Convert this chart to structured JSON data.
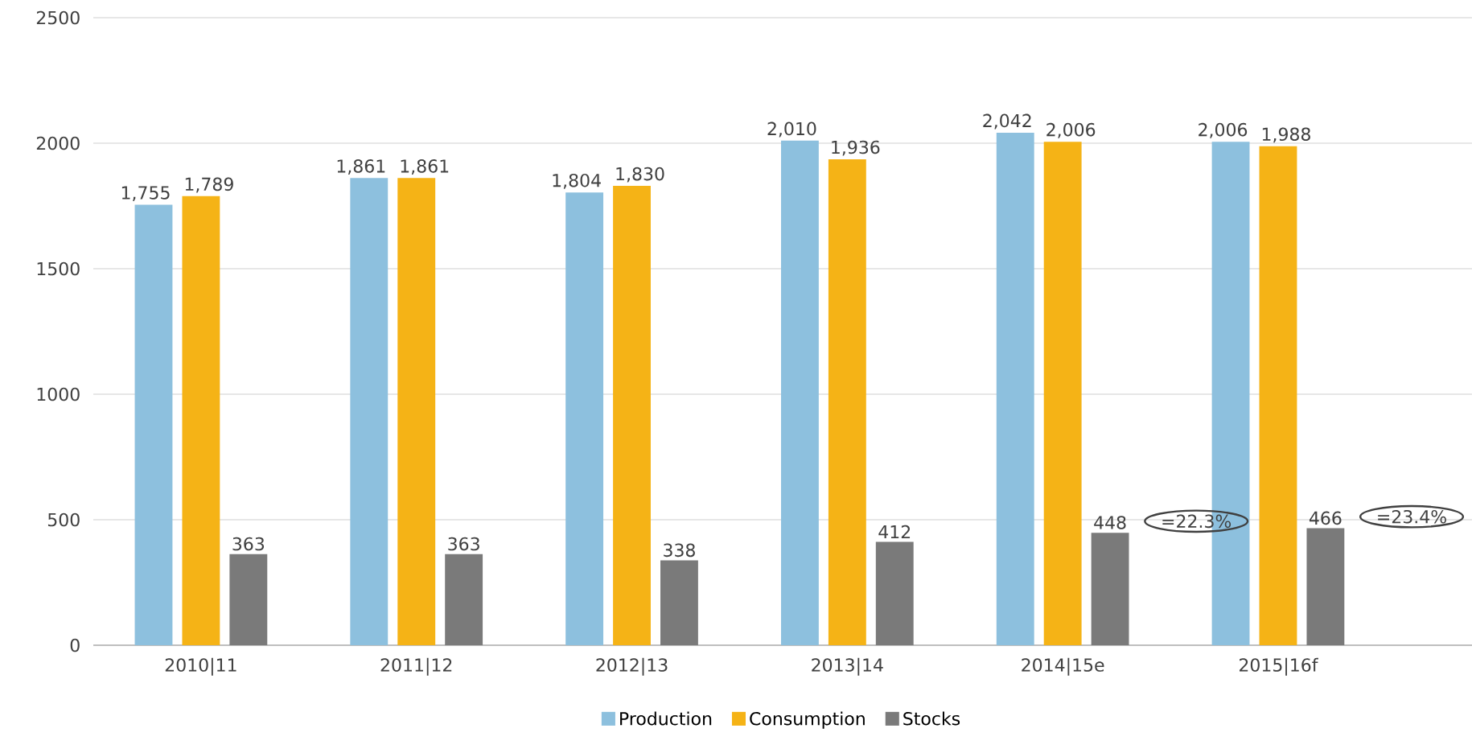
{
  "chart_data": {
    "type": "bar",
    "categories": [
      "2010|11",
      "2011|12",
      "2012|13",
      "2013|14",
      "2014|15e",
      "2015|16f"
    ],
    "series": [
      {
        "name": "Production",
        "color": "#8dc0de",
        "values": [
          1755,
          1861,
          1804,
          2010,
          2042,
          2006
        ],
        "value_labels": [
          "1,755",
          "1,861",
          "1,804",
          "2,010",
          "2,042",
          "2,006"
        ]
      },
      {
        "name": "Consumption",
        "color": "#f5b316",
        "values": [
          1789,
          1861,
          1830,
          1936,
          2006,
          1988
        ],
        "value_labels": [
          "1,789",
          "1,861",
          "1,830",
          "1,936",
          "2,006",
          "1,988"
        ]
      },
      {
        "name": "Stocks",
        "color": "#7a7a7a",
        "values": [
          363,
          363,
          338,
          412,
          448,
          466
        ],
        "value_labels": [
          "363",
          "363",
          "338",
          "412",
          "448",
          "466"
        ]
      }
    ],
    "ylim": [
      0,
      2500
    ],
    "yticks": [
      0,
      500,
      1000,
      1500,
      2000,
      2500
    ],
    "grid": "y",
    "legend": "bottom",
    "annotations": [
      "=22.3%",
      "=23.4%"
    ]
  }
}
